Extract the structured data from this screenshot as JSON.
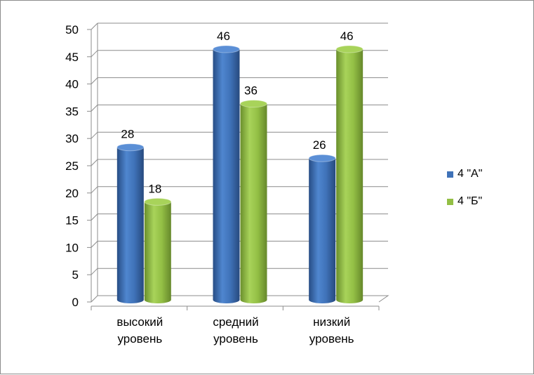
{
  "chart_data": {
    "type": "bar",
    "categories": [
      "высокий уровень",
      "средний уровень",
      "низкий уровень"
    ],
    "series": [
      {
        "name": "4 \"А\"",
        "values": [
          28,
          46,
          26
        ],
        "color": "#3f72b8"
      },
      {
        "name": "4 \"Б\"",
        "values": [
          18,
          36,
          46
        ],
        "color": "#93bf45"
      }
    ],
    "yticks": [
      "0",
      "5",
      "10",
      "15",
      "20",
      "25",
      "30",
      "35",
      "40",
      "45",
      "50"
    ],
    "ylim": [
      0,
      50
    ],
    "grid": true,
    "legend_position": "right",
    "title": "",
    "xlabel": "",
    "ylabel": ""
  }
}
